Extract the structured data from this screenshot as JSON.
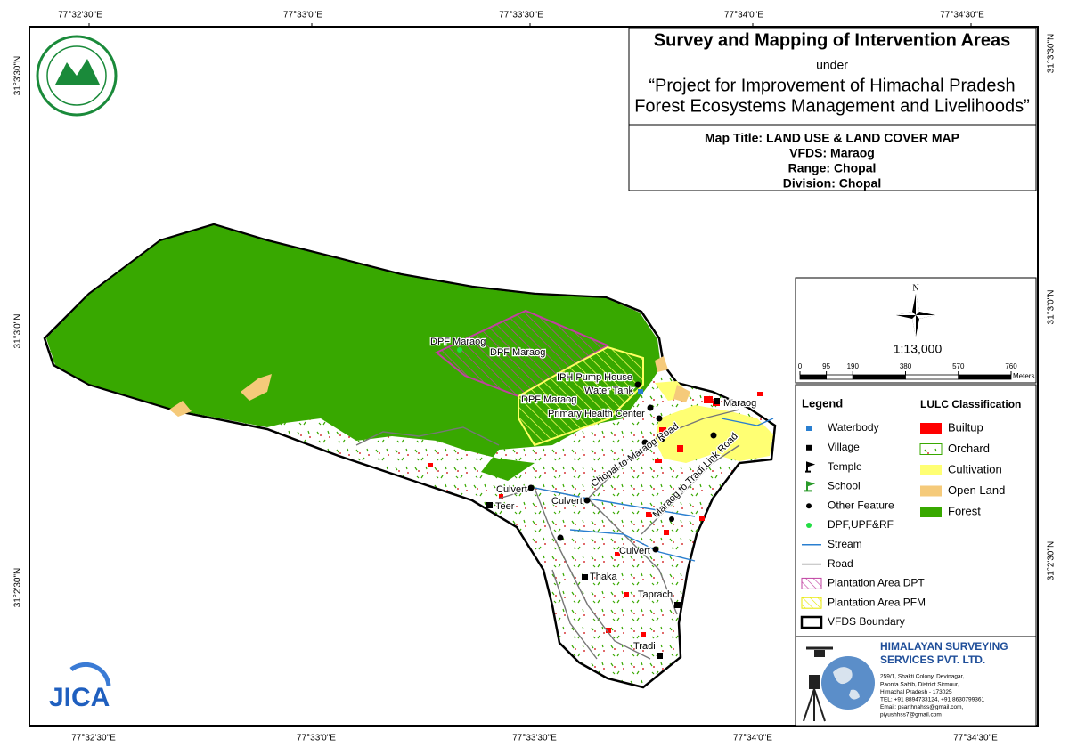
{
  "header": {
    "title": "Survey and Mapping of Intervention Areas",
    "under": "under",
    "project_lines": [
      "“Project for Improvement of Himachal Pradesh",
      "Forest Ecosystems Management and Livelihoods”"
    ]
  },
  "map_info": [
    "Map Title: LAND USE & LAND COVER MAP",
    "VFDS: Maraog",
    "Range: Chopal",
    "Division: Chopal"
  ],
  "graticule": {
    "top": [
      "77°32'30\"E",
      "77°33'0\"E",
      "77°33'30\"E",
      "77°34'0\"E",
      "77°34'30\"E"
    ],
    "bottom": [
      "77°32'30\"E",
      "77°33'0\"E",
      "77°33'30\"E",
      "77°34'0\"E",
      "77°34'30\"E"
    ],
    "left": [
      "31°3'30\"N",
      "31°3'0\"N",
      "31°2'30\"N"
    ],
    "right": [
      "31°3'30\"N",
      "31°3'0\"N",
      "31°2'30\"N"
    ]
  },
  "scale": {
    "north": "N",
    "ratio": "1:13,000",
    "ticks": [
      0,
      95,
      190,
      380,
      570,
      760
    ],
    "unit": "Meters"
  },
  "legend": {
    "title": "Legend",
    "items": [
      "Waterbody",
      "Village",
      "Temple",
      "School",
      "Other Feature",
      "DPF,UPF&RF",
      "Stream",
      "Road",
      "Plantation Area DPT",
      "Plantation Area PFM",
      "VFDS Boundary"
    ],
    "lulc_title": "LULC Classification",
    "lulc": [
      {
        "name": "Builtup",
        "color": "#ff0000"
      },
      {
        "name": "Orchard",
        "color": "#ffffff"
      },
      {
        "name": "Cultivation",
        "color": "#ffff73"
      },
      {
        "name": "Open Land",
        "color": "#f5ca7a"
      },
      {
        "name": "Forest",
        "color": "#38a800"
      }
    ]
  },
  "places": [
    "DPF Maraog",
    "DPF Maraog",
    "IPH Pump House",
    "Water Tank",
    "DPF Maraog",
    "Primary Health Center",
    "Maraog",
    "Chopal to Maraog Road",
    "Maraog to Tradi Link Road",
    "Culvert",
    "Teer",
    "Culvert",
    "Culvert",
    "Thaka",
    "Taprach",
    "Tradi"
  ],
  "company": {
    "name": [
      "HIMALAYAN SURVEYING",
      "SERVICES PVT. LTD."
    ],
    "address": [
      "259/1, Shakti Colony, Devinagar,",
      "Paonta Sahib, District Sirmour,",
      "Himachal Pradesh - 173025",
      "TEL: +91 8894733124, +91 8630799361",
      "Email: psarthnahss@gmail.com,",
      "piyushhss7@gmail.com"
    ]
  },
  "logo": {
    "jica": "JICA"
  }
}
